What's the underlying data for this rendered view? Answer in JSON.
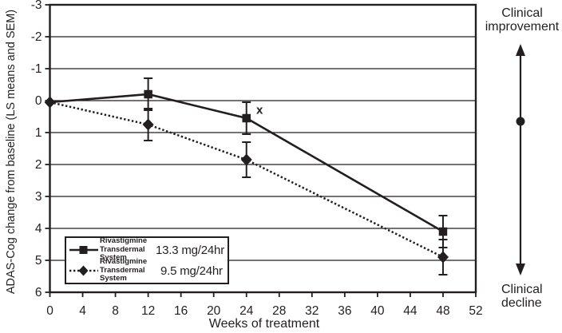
{
  "colors": {
    "ink": "#231f20",
    "background": "#ffffff"
  },
  "chart_data": {
    "type": "line",
    "title": "",
    "xlabel": "Weeks of treatment",
    "ylabel": "ADAS-Cog change from baseline (LS means and SEM)",
    "xlim": [
      0,
      52
    ],
    "ylim": [
      -3,
      6
    ],
    "y_axis_direction": "inverted: -3 at top (improvement), 6 at bottom (decline)",
    "grid": "horizontal gridlines at every integer, full plot border",
    "legend_position": "inside bottom-left",
    "x_ticks": [
      0,
      4,
      8,
      12,
      16,
      20,
      24,
      28,
      32,
      36,
      40,
      44,
      48,
      52
    ],
    "y_ticks": [
      -3,
      -2,
      -1,
      0,
      1,
      2,
      3,
      4,
      5,
      6
    ],
    "series": [
      {
        "name": "Rivastigmine Transdermal System 13.3 mg/24hr",
        "marker": "square",
        "line_style": "solid",
        "x": [
          0,
          12,
          24,
          48
        ],
        "y": [
          0.05,
          -0.2,
          0.55,
          4.1
        ],
        "sem": [
          0,
          0.5,
          0.5,
          0.5
        ],
        "show_marker": [
          false,
          true,
          true,
          true
        ]
      },
      {
        "name": "Rivastigmine Transdermal System 9.5 mg/24hr",
        "marker": "diamond",
        "line_style": "dotted",
        "x": [
          0,
          12,
          24,
          48
        ],
        "y": [
          0.05,
          0.75,
          1.85,
          4.9
        ],
        "sem": [
          0,
          0.5,
          0.55,
          0.55
        ],
        "show_marker": [
          true,
          true,
          true,
          true
        ]
      }
    ],
    "annotations": [
      {
        "text": "x",
        "week": 25.6,
        "value": 0.29
      }
    ]
  },
  "legend": {
    "items": [
      {
        "name_line1": "Rivastigmine",
        "name_line2": "Transdermal System",
        "dose": "13.3 mg/24hr",
        "marker": "square",
        "line_style": "solid"
      },
      {
        "name_line1": "Rivastigmine",
        "name_line2": "Transdermal System",
        "dose": "9.5 mg/24hr",
        "marker": "diamond",
        "line_style": "dotted"
      }
    ]
  },
  "side_annotation": {
    "improvement_line1": "Clinical",
    "improvement_line2": "improvement",
    "decline_line1": "Clinical",
    "decline_line2": "decline"
  }
}
